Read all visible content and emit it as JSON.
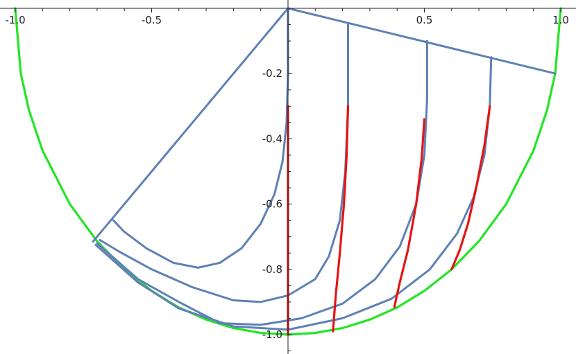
{
  "chart_data": {
    "type": "line",
    "title": "",
    "xlabel": "",
    "ylabel": "",
    "xlim": [
      -1.0,
      1.0
    ],
    "ylim": [
      -1.05,
      0.02
    ],
    "x_ticks": [
      {
        "value": -1.0,
        "label": "-1.0"
      },
      {
        "value": -0.5,
        "label": "-0.5"
      },
      {
        "value": 0.5,
        "label": "0.5"
      },
      {
        "value": 1.0,
        "label": "1.0"
      }
    ],
    "y_ticks": [
      {
        "value": -0.2,
        "label": "-0.2"
      },
      {
        "value": -0.4,
        "label": "-0.4"
      },
      {
        "value": -0.6,
        "label": "-0.6"
      },
      {
        "value": -0.8,
        "label": "-0.8"
      },
      {
        "value": -1.0,
        "label": "-1.0"
      }
    ],
    "colors": {
      "boundary": "#22e622",
      "frame": "#5e81b5",
      "red": "#e51515",
      "axis": "#222222"
    },
    "series": [
      {
        "role": "boundary",
        "color": "#22e622",
        "points": [
          [
            -1.0,
            0.0
          ],
          [
            -0.98,
            -0.199
          ],
          [
            -0.95,
            -0.312
          ],
          [
            -0.9,
            -0.436
          ],
          [
            -0.8,
            -0.6
          ],
          [
            -0.7,
            -0.714
          ],
          [
            -0.6,
            -0.8
          ],
          [
            -0.5,
            -0.866
          ],
          [
            -0.4,
            -0.917
          ],
          [
            -0.3,
            -0.954
          ],
          [
            -0.2,
            -0.98
          ],
          [
            -0.1,
            -0.995
          ],
          [
            0.0,
            -1.0
          ],
          [
            0.1,
            -0.995
          ],
          [
            0.2,
            -0.98
          ],
          [
            0.3,
            -0.954
          ],
          [
            0.4,
            -0.917
          ],
          [
            0.5,
            -0.866
          ],
          [
            0.6,
            -0.8
          ],
          [
            0.7,
            -0.714
          ],
          [
            0.8,
            -0.6
          ],
          [
            0.9,
            -0.436
          ],
          [
            0.95,
            -0.312
          ],
          [
            0.98,
            -0.199
          ],
          [
            1.0,
            0.0
          ]
        ]
      },
      {
        "role": "frame",
        "color": "#5e81b5",
        "points": [
          [
            -0.705,
            -0.705
          ],
          [
            0.0,
            0.0
          ],
          [
            0.98,
            -0.2
          ]
        ]
      },
      {
        "role": "frame",
        "color": "#5e81b5",
        "points": [
          [
            -0.705,
            -0.705
          ],
          [
            -0.715,
            -0.715
          ]
        ]
      },
      {
        "role": "curve",
        "color": "#5e81b5",
        "points": [
          [
            0.0,
            0.0
          ],
          [
            0.0,
            -0.2
          ],
          [
            -0.005,
            -0.35
          ],
          [
            -0.02,
            -0.47
          ],
          [
            -0.05,
            -0.57
          ],
          [
            -0.1,
            -0.66
          ],
          [
            -0.17,
            -0.735
          ],
          [
            -0.25,
            -0.78
          ],
          [
            -0.33,
            -0.795
          ],
          [
            -0.42,
            -0.78
          ],
          [
            -0.52,
            -0.735
          ],
          [
            -0.6,
            -0.685
          ],
          [
            -0.64,
            -0.65
          ]
        ]
      },
      {
        "role": "curve",
        "color": "#5e81b5",
        "points": [
          [
            0.22,
            -0.05
          ],
          [
            0.22,
            -0.3
          ],
          [
            0.21,
            -0.5
          ],
          [
            0.19,
            -0.65
          ],
          [
            0.15,
            -0.76
          ],
          [
            0.1,
            -0.83
          ],
          [
            0.0,
            -0.88
          ],
          [
            -0.1,
            -0.9
          ],
          [
            -0.2,
            -0.895
          ],
          [
            -0.35,
            -0.855
          ],
          [
            -0.5,
            -0.8
          ],
          [
            -0.62,
            -0.745
          ],
          [
            -0.69,
            -0.71
          ]
        ]
      },
      {
        "role": "curve",
        "color": "#5e81b5",
        "points": [
          [
            0.51,
            -0.1
          ],
          [
            0.51,
            -0.28
          ],
          [
            0.5,
            -0.45
          ],
          [
            0.47,
            -0.6
          ],
          [
            0.41,
            -0.73
          ],
          [
            0.32,
            -0.83
          ],
          [
            0.2,
            -0.905
          ],
          [
            0.05,
            -0.95
          ],
          [
            -0.1,
            -0.97
          ],
          [
            -0.25,
            -0.965
          ],
          [
            -0.4,
            -0.9
          ],
          [
            -0.55,
            -0.83
          ],
          [
            -0.7,
            -0.72
          ]
        ]
      },
      {
        "role": "curve",
        "color": "#5e81b5",
        "points": [
          [
            0.745,
            -0.15
          ],
          [
            0.74,
            -0.3
          ],
          [
            0.72,
            -0.45
          ],
          [
            0.68,
            -0.58
          ],
          [
            0.62,
            -0.69
          ],
          [
            0.52,
            -0.8
          ],
          [
            0.38,
            -0.89
          ],
          [
            0.2,
            -0.95
          ],
          [
            0.0,
            -0.985
          ],
          [
            -0.2,
            -0.975
          ],
          [
            -0.4,
            -0.92
          ],
          [
            -0.55,
            -0.84
          ],
          [
            -0.705,
            -0.725
          ]
        ]
      },
      {
        "role": "red-curve",
        "color": "#e51515",
        "points": [
          [
            0.0,
            -0.3
          ],
          [
            0.0,
            -0.6
          ],
          [
            0.0,
            -0.8
          ],
          [
            0.0,
            -1.0
          ]
        ]
      },
      {
        "role": "red-curve",
        "color": "#e51515",
        "points": [
          [
            0.22,
            -0.3
          ],
          [
            0.215,
            -0.45
          ],
          [
            0.205,
            -0.6
          ],
          [
            0.19,
            -0.75
          ],
          [
            0.175,
            -0.88
          ],
          [
            0.165,
            -0.99
          ]
        ]
      },
      {
        "role": "red-curve",
        "color": "#e51515",
        "points": [
          [
            0.5,
            -0.34
          ],
          [
            0.49,
            -0.46
          ],
          [
            0.47,
            -0.6
          ],
          [
            0.44,
            -0.74
          ],
          [
            0.41,
            -0.84
          ],
          [
            0.39,
            -0.915
          ]
        ]
      },
      {
        "role": "red-curve",
        "color": "#e51515",
        "points": [
          [
            0.74,
            -0.3
          ],
          [
            0.72,
            -0.42
          ],
          [
            0.69,
            -0.55
          ],
          [
            0.66,
            -0.66
          ],
          [
            0.63,
            -0.74
          ],
          [
            0.6,
            -0.8
          ]
        ]
      }
    ]
  }
}
